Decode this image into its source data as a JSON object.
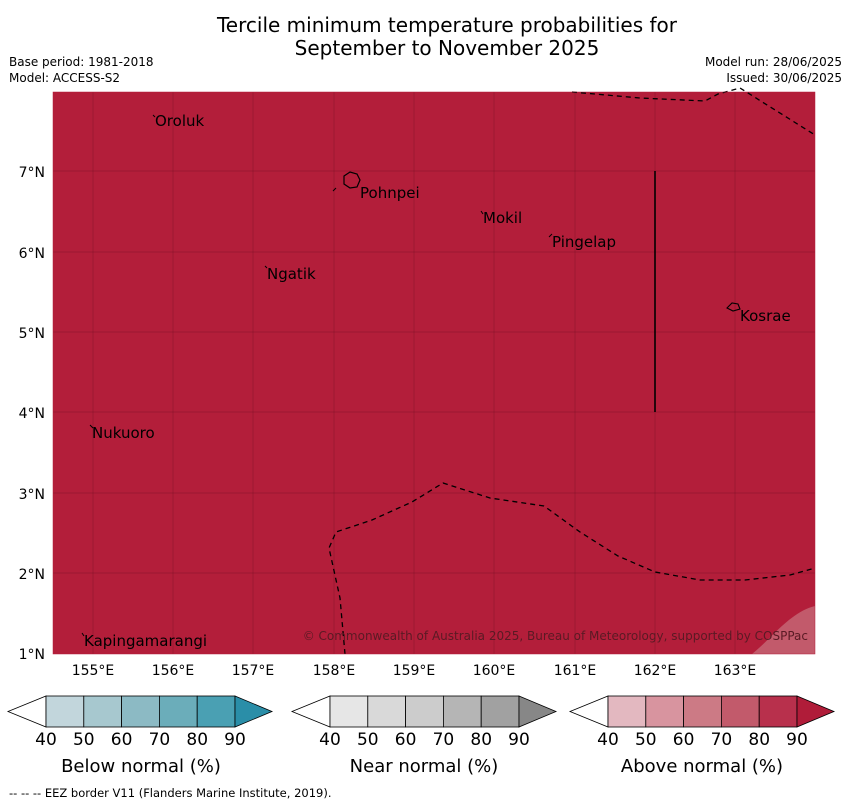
{
  "title_line1": "Tercile minimum temperature probabilities for",
  "title_line2": "September to November 2025",
  "base_period": "Base period: 1981-2018",
  "model": "Model: ACCESS-S2",
  "model_run": "Model run: 28/06/2025",
  "issued": "Issued: 30/06/2025",
  "map": {
    "fill_color": "#b31e3a",
    "lon_range": [
      154.5,
      164.0
    ],
    "lat_range": [
      1.0,
      8.0
    ],
    "lon_ticks": [
      "155°E",
      "156°E",
      "157°E",
      "158°E",
      "159°E",
      "160°E",
      "161°E",
      "162°E",
      "163°E"
    ],
    "lat_ticks": [
      "1°N",
      "2°N",
      "3°N",
      "4°N",
      "5°N",
      "6°N",
      "7°N"
    ],
    "places": {
      "oroluk": "Oroluk",
      "pohnpei": "Pohnpei",
      "mokil": "Mokil",
      "pingelap": "Pingelap",
      "ngatik": "Ngatik",
      "kosrae": "Kosrae",
      "nukuoro": "Nukuoro",
      "kapingamarangi": "Kapingamarangi"
    },
    "copyright": "© Commonwealth of Australia 2025, Bureau of Meteorology, supported by COSPPac"
  },
  "colorbars": {
    "tick_labels": [
      "40",
      "50",
      "60",
      "70",
      "80",
      "90"
    ],
    "below": {
      "title": "Below normal (%)",
      "colors": [
        "#ffffff",
        "#c2d6dc",
        "#a7c8cf",
        "#8cbac4",
        "#6badba",
        "#4aa0b3",
        "#2a8ea8"
      ]
    },
    "near": {
      "title": "Near normal (%)",
      "colors": [
        "#ffffff",
        "#e6e6e6",
        "#d9d9d9",
        "#cccccc",
        "#b5b5b5",
        "#a1a1a1",
        "#878787"
      ]
    },
    "above": {
      "title": "Above normal (%)",
      "colors": [
        "#ffffff",
        "#e3b8c0",
        "#d8949f",
        "#cc7a85",
        "#c25a6b",
        "#b8304c",
        "#b01c39"
      ]
    }
  },
  "footer": "--  --  -- EEZ border V11 (Flanders Marine Institute, 2019)."
}
